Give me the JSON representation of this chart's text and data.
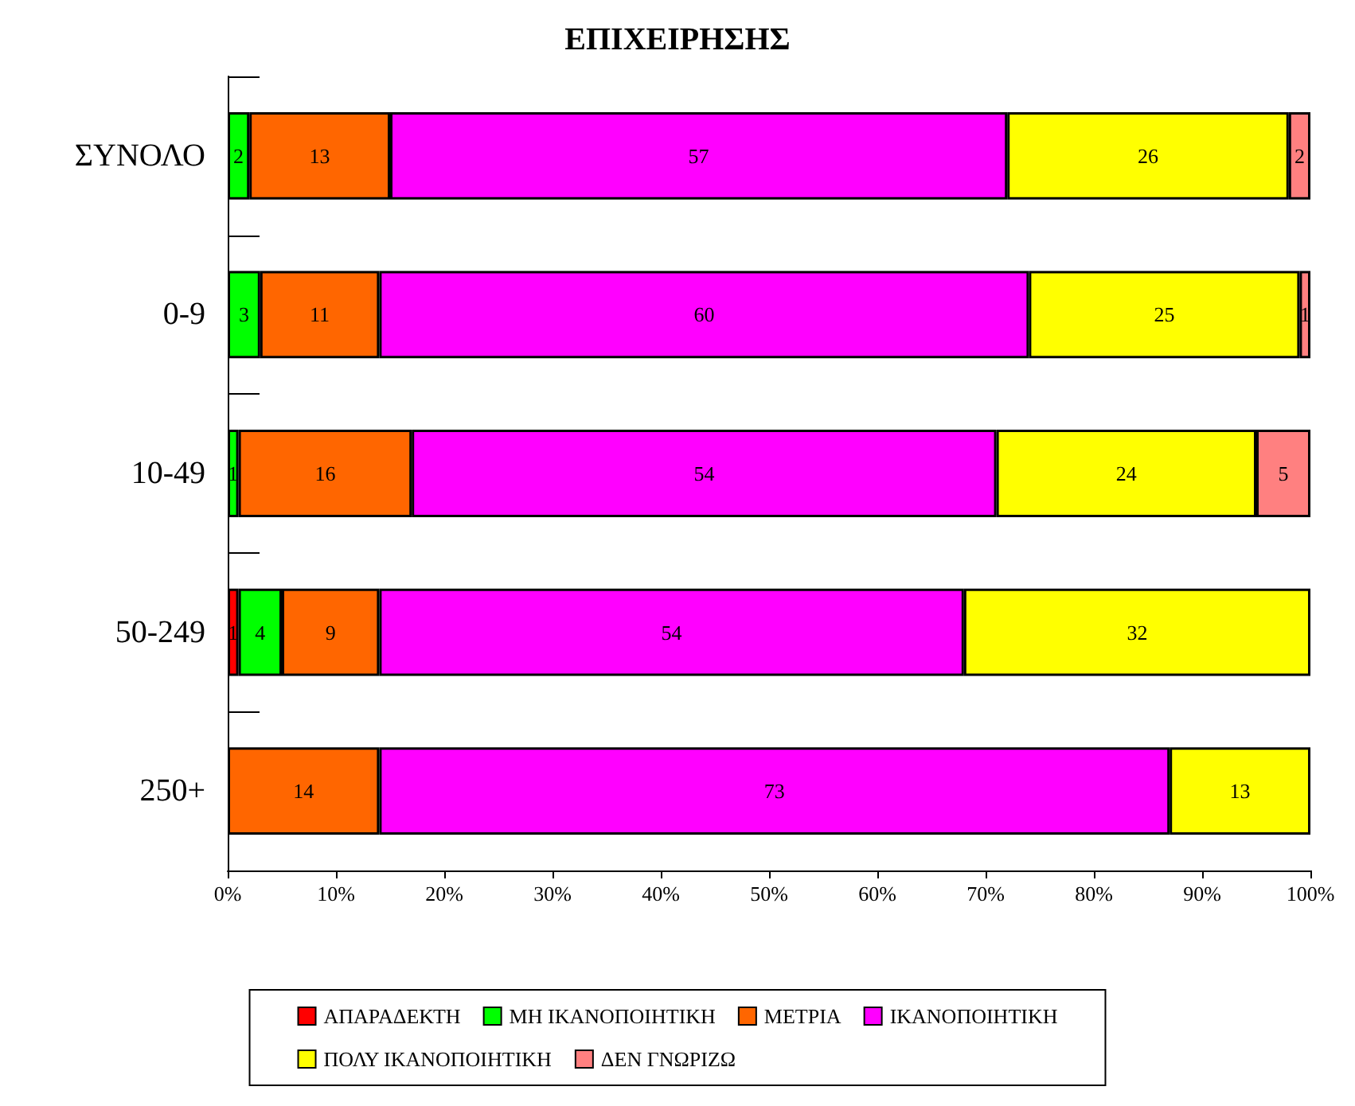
{
  "chart_data": {
    "type": "bar",
    "orientation": "horizontal",
    "stacked": true,
    "title": "ΕΠΙΧΕΙΡΗΣΗΣ",
    "categories": [
      "ΣΥΝΟΛΟ",
      "0-9",
      "10-49",
      "50-249",
      "250+"
    ],
    "series": [
      {
        "name": "ΑΠΑΡΑΔΕΚΤΗ",
        "color": "#ff0000",
        "values": [
          null,
          null,
          null,
          1,
          null
        ]
      },
      {
        "name": "ΜΗ ΙΚΑΝΟΠΟΙΗΤΙΚΗ",
        "color": "#00ff00",
        "values": [
          2,
          3,
          1,
          4,
          null
        ]
      },
      {
        "name": "ΜΕΤΡΙΑ",
        "color": "#ff6600",
        "values": [
          13,
          11,
          16,
          9,
          14
        ]
      },
      {
        "name": "ΙΚΑΝΟΠΟΙΗΤΙΚΗ",
        "color": "#ff00ff",
        "values": [
          57,
          60,
          54,
          54,
          73
        ]
      },
      {
        "name": "ΠΟΛΥ ΙΚΑΝΟΠΟΙΗΤΙΚΗ",
        "color": "#ffff00",
        "values": [
          26,
          25,
          24,
          32,
          13
        ]
      },
      {
        "name": "ΔΕΝ ΓΝΩΡΙΖΩ",
        "color": "#ff8080",
        "values": [
          2,
          1,
          5,
          null,
          null
        ]
      }
    ],
    "xlim": [
      0,
      100
    ],
    "xticks": [
      {
        "value": 0,
        "label": "0%"
      },
      {
        "value": 10,
        "label": "10%"
      },
      {
        "value": 20,
        "label": "20%"
      },
      {
        "value": 30,
        "label": "30%"
      },
      {
        "value": 40,
        "label": "40%"
      },
      {
        "value": 50,
        "label": "50%"
      },
      {
        "value": 60,
        "label": "60%"
      },
      {
        "value": 70,
        "label": "70%"
      },
      {
        "value": 80,
        "label": "80%"
      },
      {
        "value": 90,
        "label": "90%"
      },
      {
        "value": 100,
        "label": "100%"
      }
    ],
    "data_labels": true,
    "grid": false,
    "legend": "bottom"
  }
}
